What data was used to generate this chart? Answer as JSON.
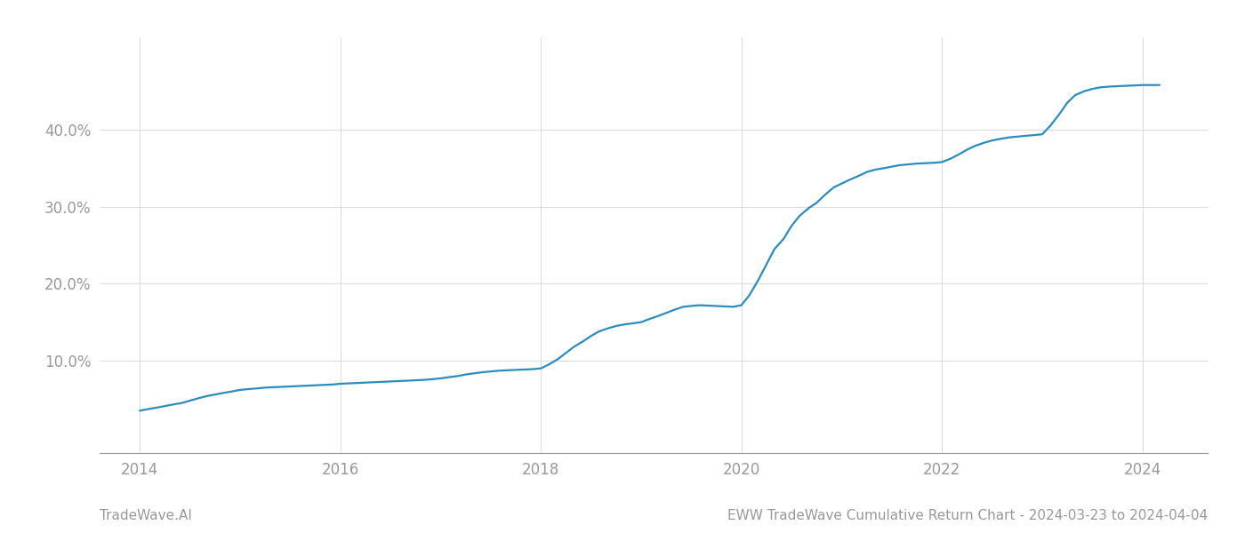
{
  "title": "",
  "footer_left": "TradeWave.AI",
  "footer_right": "EWW TradeWave Cumulative Return Chart - 2024-03-23 to 2024-04-04",
  "line_color": "#2b8cbe",
  "background_color": "#ffffff",
  "grid_color": "#cccccc",
  "data_x": [
    2014.0,
    2014.08,
    2014.17,
    2014.25,
    2014.33,
    2014.42,
    2014.5,
    2014.58,
    2014.67,
    2014.75,
    2014.83,
    2014.92,
    2015.0,
    2015.08,
    2015.17,
    2015.25,
    2015.33,
    2015.42,
    2015.5,
    2015.58,
    2015.67,
    2015.75,
    2015.83,
    2015.92,
    2016.0,
    2016.08,
    2016.17,
    2016.25,
    2016.33,
    2016.42,
    2016.5,
    2016.58,
    2016.67,
    2016.75,
    2016.83,
    2016.92,
    2017.0,
    2017.08,
    2017.17,
    2017.25,
    2017.33,
    2017.42,
    2017.5,
    2017.58,
    2017.67,
    2017.75,
    2017.83,
    2017.92,
    2018.0,
    2018.08,
    2018.17,
    2018.25,
    2018.33,
    2018.42,
    2018.5,
    2018.58,
    2018.67,
    2018.75,
    2018.83,
    2018.92,
    2019.0,
    2019.08,
    2019.17,
    2019.25,
    2019.33,
    2019.42,
    2019.5,
    2019.58,
    2019.67,
    2019.75,
    2019.83,
    2019.92,
    2020.0,
    2020.08,
    2020.17,
    2020.25,
    2020.33,
    2020.42,
    2020.5,
    2020.58,
    2020.67,
    2020.75,
    2020.83,
    2020.92,
    2021.0,
    2021.08,
    2021.17,
    2021.25,
    2021.33,
    2021.42,
    2021.5,
    2021.58,
    2021.67,
    2021.75,
    2021.83,
    2021.92,
    2022.0,
    2022.08,
    2022.17,
    2022.25,
    2022.33,
    2022.42,
    2022.5,
    2022.58,
    2022.67,
    2022.75,
    2022.83,
    2022.92,
    2023.0,
    2023.08,
    2023.17,
    2023.25,
    2023.33,
    2023.42,
    2023.5,
    2023.58,
    2023.67,
    2023.75,
    2023.83,
    2023.92,
    2024.0,
    2024.08,
    2024.17
  ],
  "data_y": [
    3.5,
    3.7,
    3.9,
    4.1,
    4.3,
    4.5,
    4.8,
    5.1,
    5.4,
    5.6,
    5.8,
    6.0,
    6.2,
    6.3,
    6.4,
    6.5,
    6.55,
    6.6,
    6.65,
    6.7,
    6.75,
    6.8,
    6.85,
    6.9,
    7.0,
    7.05,
    7.1,
    7.15,
    7.2,
    7.25,
    7.3,
    7.35,
    7.4,
    7.45,
    7.5,
    7.6,
    7.7,
    7.85,
    8.0,
    8.2,
    8.35,
    8.5,
    8.6,
    8.7,
    8.75,
    8.8,
    8.85,
    8.9,
    9.0,
    9.5,
    10.2,
    11.0,
    11.8,
    12.5,
    13.2,
    13.8,
    14.2,
    14.5,
    14.7,
    14.85,
    15.0,
    15.4,
    15.8,
    16.2,
    16.6,
    17.0,
    17.1,
    17.2,
    17.15,
    17.1,
    17.05,
    17.0,
    17.2,
    18.5,
    20.5,
    22.5,
    24.5,
    25.8,
    27.5,
    28.8,
    29.8,
    30.5,
    31.5,
    32.5,
    33.0,
    33.5,
    34.0,
    34.5,
    34.8,
    35.0,
    35.2,
    35.4,
    35.5,
    35.6,
    35.65,
    35.7,
    35.8,
    36.2,
    36.8,
    37.4,
    37.9,
    38.3,
    38.6,
    38.8,
    39.0,
    39.1,
    39.2,
    39.3,
    39.4,
    40.5,
    42.0,
    43.5,
    44.5,
    45.0,
    45.3,
    45.5,
    45.6,
    45.65,
    45.7,
    45.75,
    45.8,
    45.8,
    45.8
  ],
  "yticks": [
    10.0,
    20.0,
    30.0,
    40.0
  ],
  "ylim": [
    -2,
    52
  ],
  "xlim": [
    2013.6,
    2024.65
  ],
  "xticks": [
    2014,
    2016,
    2018,
    2020,
    2022,
    2024
  ],
  "line_width": 1.6,
  "footer_fontsize": 11,
  "tick_fontsize": 12,
  "tick_color": "#999999",
  "grid_color_light": "#dddddd",
  "footer_text_color": "#999999"
}
